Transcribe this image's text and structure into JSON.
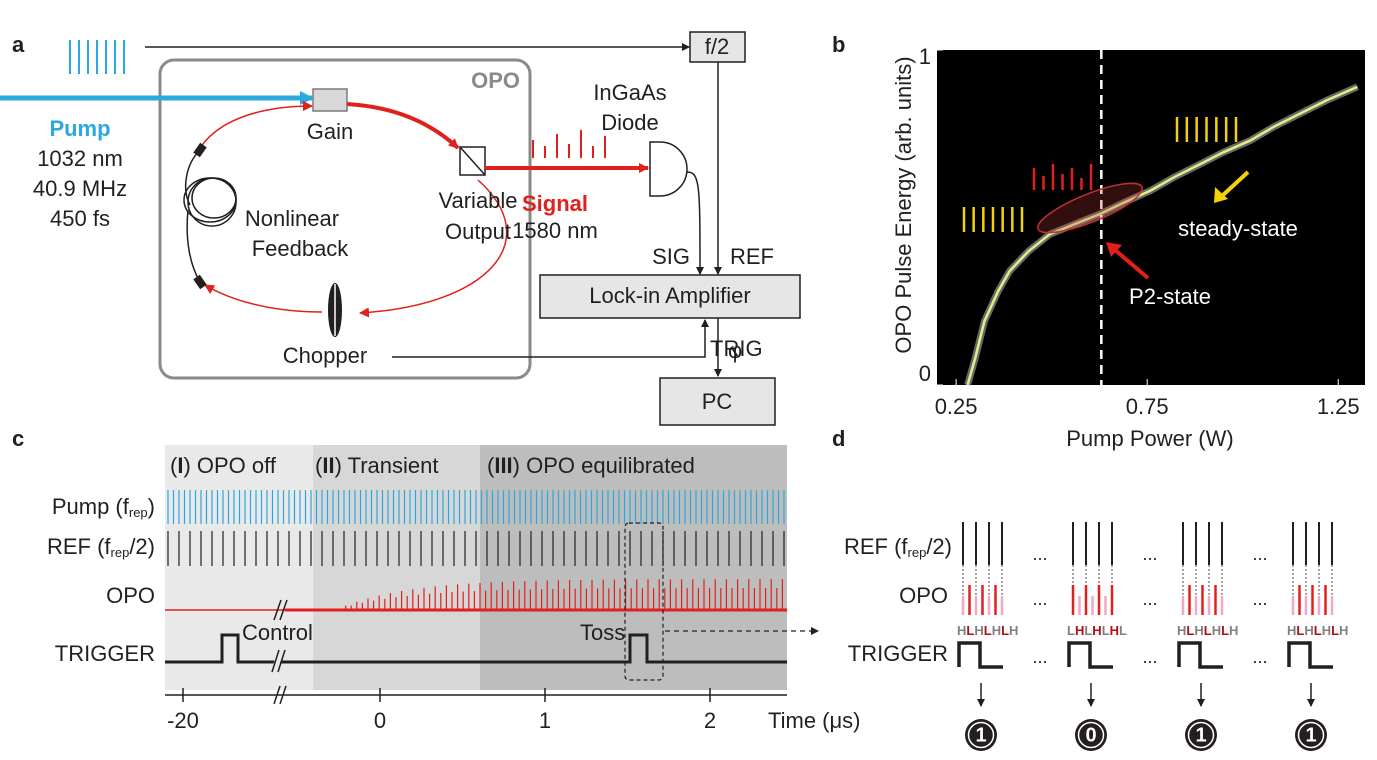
{
  "panel_a": {
    "label": "a",
    "box_label": "OPO",
    "divider": "f/2",
    "detector": [
      "InGaAs",
      "Diode"
    ],
    "pump": {
      "name": "Pump",
      "specs": [
        "1032 nm",
        "40.9 MHz",
        "450 fs"
      ]
    },
    "gain": "Gain",
    "feedback": [
      "Nonlinear",
      "Feedback"
    ],
    "output": [
      "Variable",
      "Output"
    ],
    "signal": {
      "name": "Signal",
      "wavelength": "1580 nm"
    },
    "lockin": {
      "name": "Lock-in Amplifier",
      "inputs": [
        "SIG",
        "REF",
        "TRIG"
      ],
      "output": "φ"
    },
    "chopper": "Chopper",
    "pc": "PC"
  },
  "chart_data": {
    "type": "line",
    "label": "b",
    "xlabel": "Pump Power (W)",
    "ylabel": "OPO Pulse Energy (arb. units)",
    "x": [
      0.28,
      0.3,
      0.324,
      0.36,
      0.39,
      0.44,
      0.495,
      0.56,
      0.626,
      0.69,
      0.758,
      0.82,
      0.89,
      0.95,
      1.02,
      1.08,
      1.15,
      1.22,
      1.3
    ],
    "series": [
      {
        "color": "#e4ec86",
        "values": [
          0,
          0.08,
          0.19,
          0.28,
          0.34,
          0.4,
          0.45,
          0.48,
          0.51,
          0.545,
          0.58,
          0.62,
          0.66,
          0.695,
          0.73,
          0.77,
          0.81,
          0.85,
          0.89
        ]
      }
    ],
    "xlim": [
      0.2,
      1.32
    ],
    "ylim": [
      0,
      1
    ],
    "xticks": [
      0.25,
      0.75,
      1.25
    ],
    "yticks": [
      0,
      1
    ],
    "vline": 0.63,
    "background": "#000000",
    "annotations": [
      "steady-state",
      "P2-state"
    ]
  },
  "panel_c": {
    "label": "c",
    "phases": [
      [
        "(",
        "I",
        ") OPO off"
      ],
      [
        "(",
        "II",
        ") Transient"
      ],
      [
        "(",
        "III",
        ") OPO equilibrated"
      ]
    ],
    "rows": [
      [
        "Pump (f",
        "rep",
        ")"
      ],
      [
        "REF (f",
        "rep",
        "/2)"
      ],
      "OPO",
      "TRIGGER"
    ],
    "events": [
      "Control",
      "Toss"
    ],
    "xticks": [
      -20,
      0,
      1,
      2
    ],
    "xlim": [
      -20,
      2.47
    ],
    "xlabel": "Time (μs)"
  },
  "panel_d": {
    "label": "d",
    "rows": [
      [
        "REF (f",
        "rep",
        "/2)"
      ],
      "OPO",
      "TRIGGER"
    ],
    "patterns": [
      "HLHLHLH",
      "LHLHLHL",
      "HLHLHLH",
      "HLHLHLH"
    ],
    "bits": [
      "1",
      "0",
      "1",
      "1"
    ],
    "ellipsis": "..."
  }
}
